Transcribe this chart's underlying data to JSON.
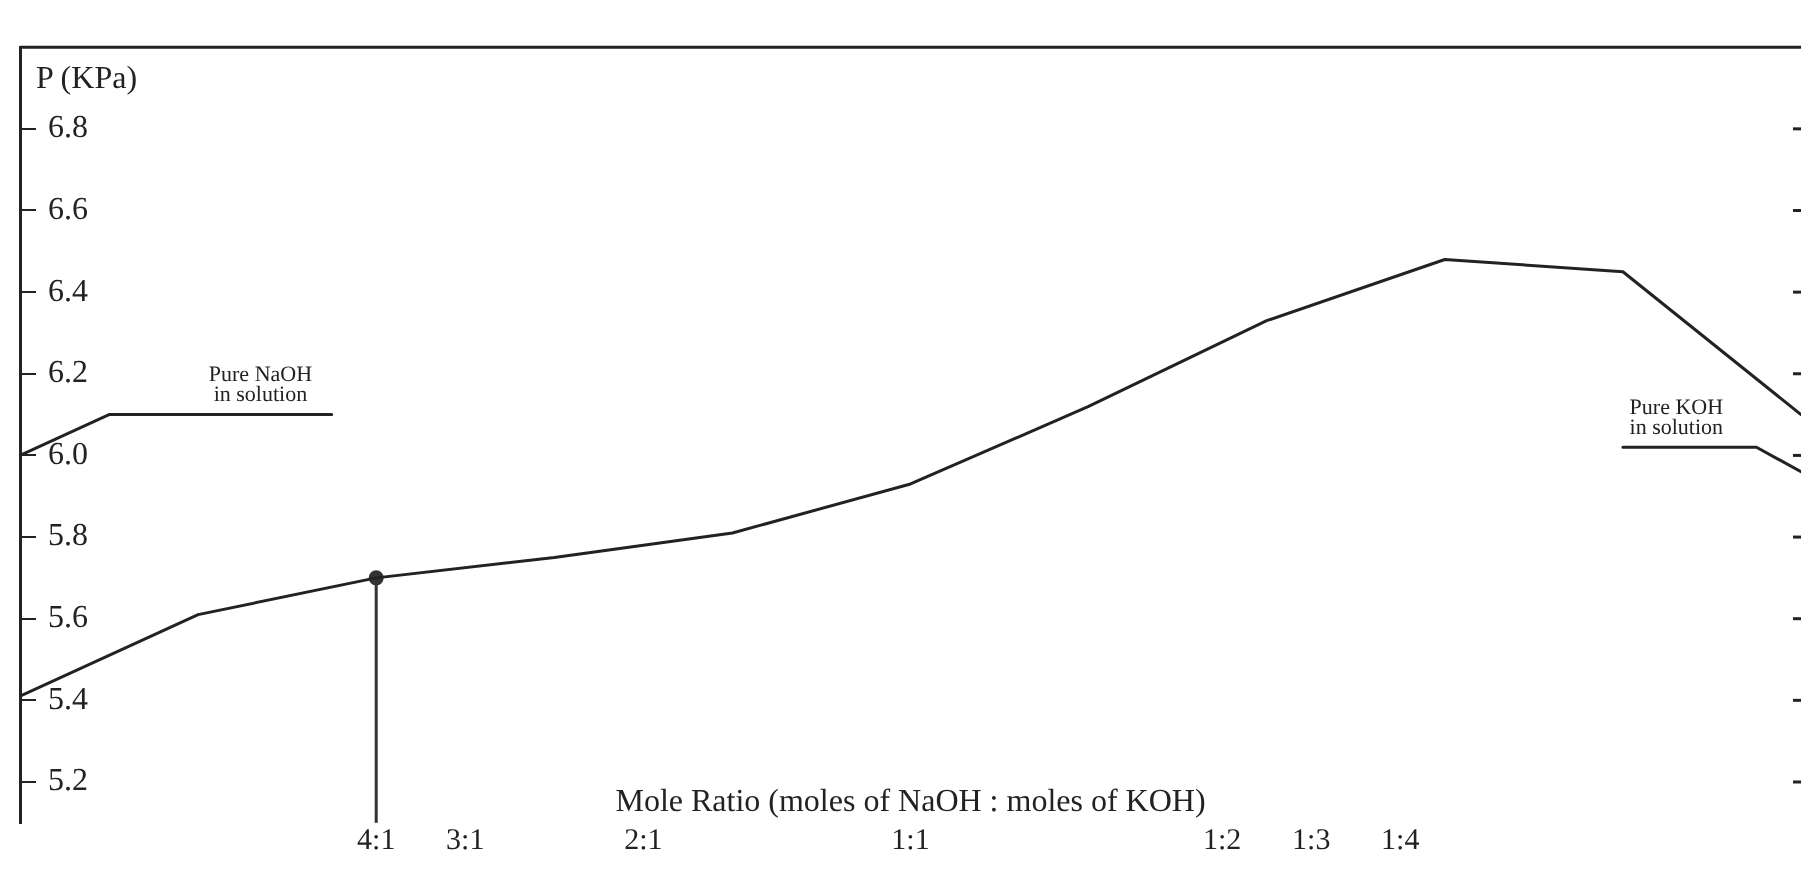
{
  "chart_data": {
    "type": "line",
    "ylabel": "P (KPa)",
    "xlabel": "Mole Ratio (moles of NaOH : moles of KOH)",
    "categories": [
      null,
      null,
      null,
      null,
      null,
      null,
      null,
      null,
      "4:1",
      null,
      "3:1",
      null,
      null,
      null,
      "2:1",
      null,
      null,
      null,
      null,
      null,
      "1:1",
      null,
      null,
      null,
      null,
      null,
      null,
      "1:2",
      null,
      "1:3",
      null,
      "1:4",
      null,
      null,
      null,
      null,
      null,
      null,
      null,
      null,
      null
    ],
    "ylim": [
      5.1,
      7.0
    ],
    "yticks": [
      5.2,
      5.4,
      5.6,
      5.8,
      {
        "value": 6.0,
        "label": "6.0"
      },
      6.2,
      6.4,
      6.6,
      6.8
    ],
    "grid": false,
    "legend": false,
    "marker": "none",
    "line_style": "solid",
    "series": [
      {
        "color": "#222222",
        "values": [
          5.41,
          null,
          null,
          null,
          5.61,
          null,
          null,
          null,
          5.7,
          null,
          null,
          null,
          5.75,
          null,
          null,
          null,
          5.81,
          null,
          null,
          null,
          5.93,
          null,
          null,
          null,
          6.12,
          null,
          null,
          null,
          6.33,
          null,
          null,
          null,
          6.48,
          null,
          null,
          null,
          6.45,
          null,
          null,
          null,
          6.1
        ]
      },
      {
        "color": "#222222",
        "values": [
          6.0,
          null,
          6.1,
          null,
          null,
          null,
          null,
          6.1,
          null,
          null,
          null,
          null,
          null,
          null,
          null,
          null,
          null,
          null,
          null,
          null,
          null,
          null,
          null,
          null,
          null,
          null,
          null,
          null,
          null,
          null,
          null,
          null,
          null,
          null,
          null,
          null,
          null,
          null,
          null,
          null,
          null
        ]
      },
      {
        "color": "#222222",
        "values": [
          null,
          null,
          null,
          null,
          null,
          null,
          null,
          null,
          null,
          null,
          null,
          null,
          null,
          null,
          null,
          null,
          null,
          null,
          null,
          null,
          null,
          null,
          null,
          null,
          null,
          null,
          null,
          null,
          null,
          null,
          null,
          null,
          null,
          null,
          null,
          null,
          6.02,
          null,
          null,
          6.02,
          5.96
        ]
      },
      {
        "type": "scatter",
        "color": "#333333",
        "marker": "circle",
        "values": [
          null,
          null,
          null,
          null,
          null,
          null,
          null,
          null,
          5.7,
          null,
          null,
          null,
          null,
          null,
          null,
          null,
          null,
          null,
          null,
          null,
          null,
          null,
          null,
          null,
          null,
          null,
          null,
          null,
          null,
          null,
          null,
          null,
          null,
          null,
          null,
          null,
          null,
          null,
          null,
          null,
          null
        ],
        "errors": [
          null,
          null,
          null,
          null,
          null,
          null,
          null,
          null,
          [
            5.1,
            5.7
          ],
          null,
          null,
          null,
          null,
          null,
          null,
          null,
          null,
          null,
          null,
          null,
          null,
          null,
          null,
          null,
          null,
          null,
          null,
          null,
          null,
          null,
          null,
          null,
          null,
          null,
          null,
          null,
          null,
          null,
          null,
          null,
          null
        ]
      }
    ],
    "annotations": [
      {
        "text": "Pure NaOH\nin solution",
        "y": 6.1
      },
      {
        "text": "Pure KOH\nin solution",
        "y": 6.02
      }
    ]
  }
}
